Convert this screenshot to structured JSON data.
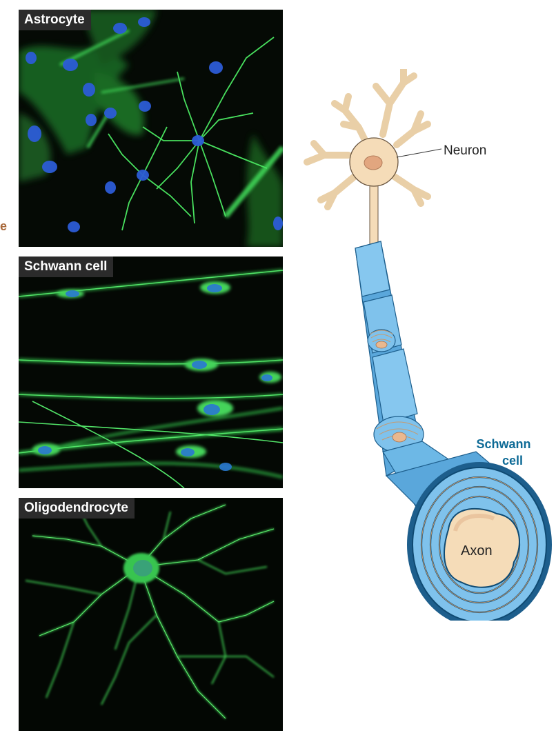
{
  "panels": {
    "astrocyte": {
      "label": "Astrocyte"
    },
    "schwann": {
      "label": "Schwann cell"
    },
    "oligodendrocyte": {
      "label": "Oligodendrocyte"
    }
  },
  "edge_letter": "e",
  "diagram": {
    "neuron_label": "Neuron",
    "schwann_label_line1": "Schwann",
    "schwann_label_line2": "cell",
    "axon_label": "Axon"
  },
  "colors": {
    "micrograph_background": "#030603",
    "fluorescence_green": "#3fd456",
    "nucleus_blue": "#2c5cd6",
    "neuron_fill": "#f5dcb8",
    "sheath_blue": "#7fc4ec",
    "label_blue": "#0d6a96"
  }
}
